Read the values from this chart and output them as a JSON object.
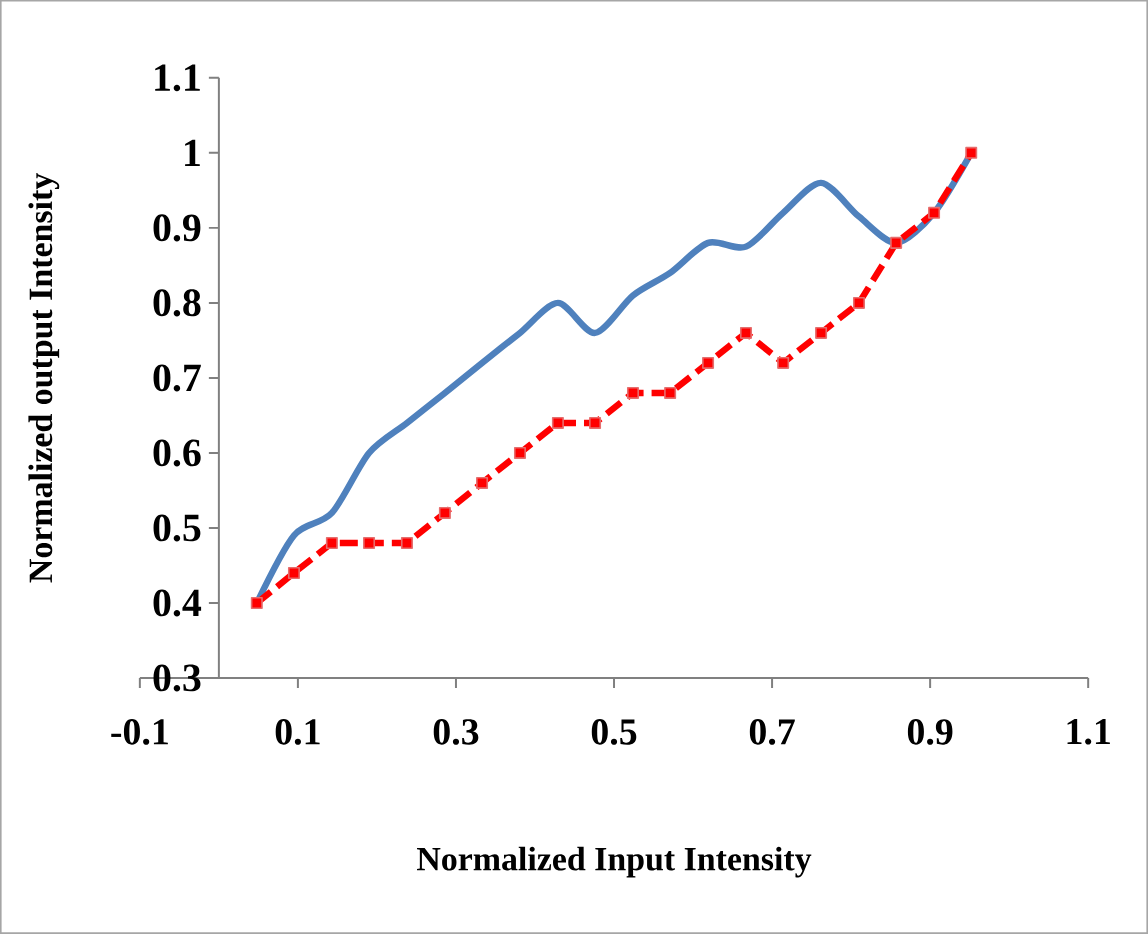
{
  "chart_data": {
    "type": "line",
    "xlabel": "Normalized Input Intensity",
    "ylabel": "Normalized output Intensity",
    "xlim": [
      -0.1,
      1.1
    ],
    "xticks": [
      -0.1,
      0.1,
      0.3,
      0.5,
      0.7,
      0.9,
      1.1
    ],
    "ylim": [
      0.3,
      1.1
    ],
    "yticks": [
      0.3,
      0.4,
      0.5,
      0.6,
      0.7,
      0.8,
      0.9,
      1,
      1.1
    ],
    "series": [
      {
        "color": "#4f81bd",
        "marker": "none",
        "line_style": "solid",
        "x": [
          0.048,
          0.095,
          0.143,
          0.19,
          0.238,
          0.286,
          0.333,
          0.381,
          0.429,
          0.476,
          0.524,
          0.571,
          0.619,
          0.667,
          0.714,
          0.762,
          0.81,
          0.857,
          0.905,
          0.952
        ],
        "values": [
          0.4,
          0.49,
          0.52,
          0.6,
          0.64,
          0.68,
          0.72,
          0.76,
          0.8,
          0.76,
          0.81,
          0.84,
          0.88,
          0.875,
          0.92,
          0.96,
          0.915,
          0.88,
          0.92,
          1.0
        ]
      },
      {
        "color": "#ff0000",
        "marker": "square",
        "line_style": "dashed",
        "x": [
          0.048,
          0.095,
          0.143,
          0.19,
          0.238,
          0.286,
          0.333,
          0.381,
          0.429,
          0.476,
          0.524,
          0.571,
          0.619,
          0.667,
          0.714,
          0.762,
          0.81,
          0.857,
          0.905,
          0.952
        ],
        "values": [
          0.4,
          0.44,
          0.48,
          0.48,
          0.48,
          0.52,
          0.56,
          0.6,
          0.64,
          0.64,
          0.68,
          0.68,
          0.72,
          0.76,
          0.72,
          0.76,
          0.8,
          0.88,
          0.92,
          1.0
        ]
      }
    ]
  }
}
